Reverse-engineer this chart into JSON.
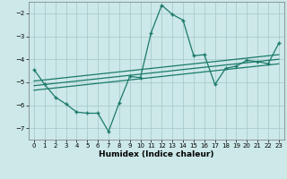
{
  "xlabel": "Humidex (Indice chaleur)",
  "background_color": "#cce8e8",
  "grid_color": "#aacccc",
  "line_color": "#1a7a6a",
  "xlim": [
    -0.5,
    23.5
  ],
  "ylim": [
    -7.5,
    -1.5
  ],
  "yticks": [
    -7,
    -6,
    -5,
    -4,
    -3,
    -2
  ],
  "xticks": [
    0,
    1,
    2,
    3,
    4,
    5,
    6,
    7,
    8,
    9,
    10,
    11,
    12,
    13,
    14,
    15,
    16,
    17,
    18,
    19,
    20,
    21,
    22,
    23
  ],
  "main_x": [
    0,
    1,
    2,
    3,
    4,
    5,
    6,
    7,
    8,
    9,
    10,
    11,
    12,
    13,
    14,
    15,
    16,
    17,
    18,
    19,
    20,
    21,
    22,
    23
  ],
  "main_y": [
    -4.45,
    -5.1,
    -5.65,
    -5.95,
    -6.3,
    -6.35,
    -6.35,
    -7.15,
    -5.9,
    -4.75,
    -4.8,
    -2.85,
    -1.65,
    -2.05,
    -2.3,
    -3.85,
    -3.8,
    -5.1,
    -4.4,
    -4.3,
    -4.05,
    -4.1,
    -4.2,
    -3.3
  ],
  "line1_x": [
    0,
    23
  ],
  "line1_y": [
    -4.95,
    -3.8
  ],
  "line2_x": [
    0,
    23
  ],
  "line2_y": [
    -5.15,
    -4.0
  ],
  "line3_x": [
    0,
    23
  ],
  "line3_y": [
    -5.35,
    -4.2
  ]
}
